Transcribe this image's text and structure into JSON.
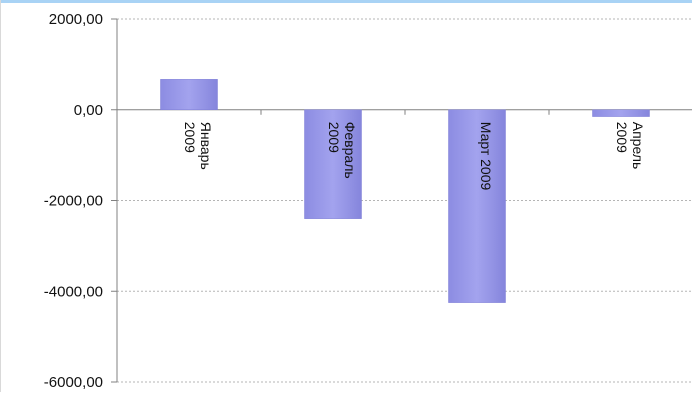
{
  "chart_data": {
    "type": "bar",
    "title": "",
    "xlabel": "",
    "ylabel": "",
    "categories": [
      [
        "Январь",
        "2009"
      ],
      [
        "Февраль",
        "2009"
      ],
      [
        "Март 2009"
      ],
      [
        "Апрель",
        "2009"
      ]
    ],
    "values": [
      670,
      -2400,
      -4250,
      -150
    ],
    "ylim": [
      -6000,
      2000
    ],
    "y_ticks": [
      2000,
      0,
      -2000,
      -4000,
      -6000
    ],
    "y_tick_labels": [
      "2000,00",
      "0,00",
      "-2000,00",
      "-4000,00",
      "-6000,00"
    ],
    "grid": true,
    "category_label_rotation": "vertical",
    "bar_color": "#9a9ae8",
    "bar_color_dark": "#7f7fd6",
    "accent_color": "#a9d3f5"
  }
}
